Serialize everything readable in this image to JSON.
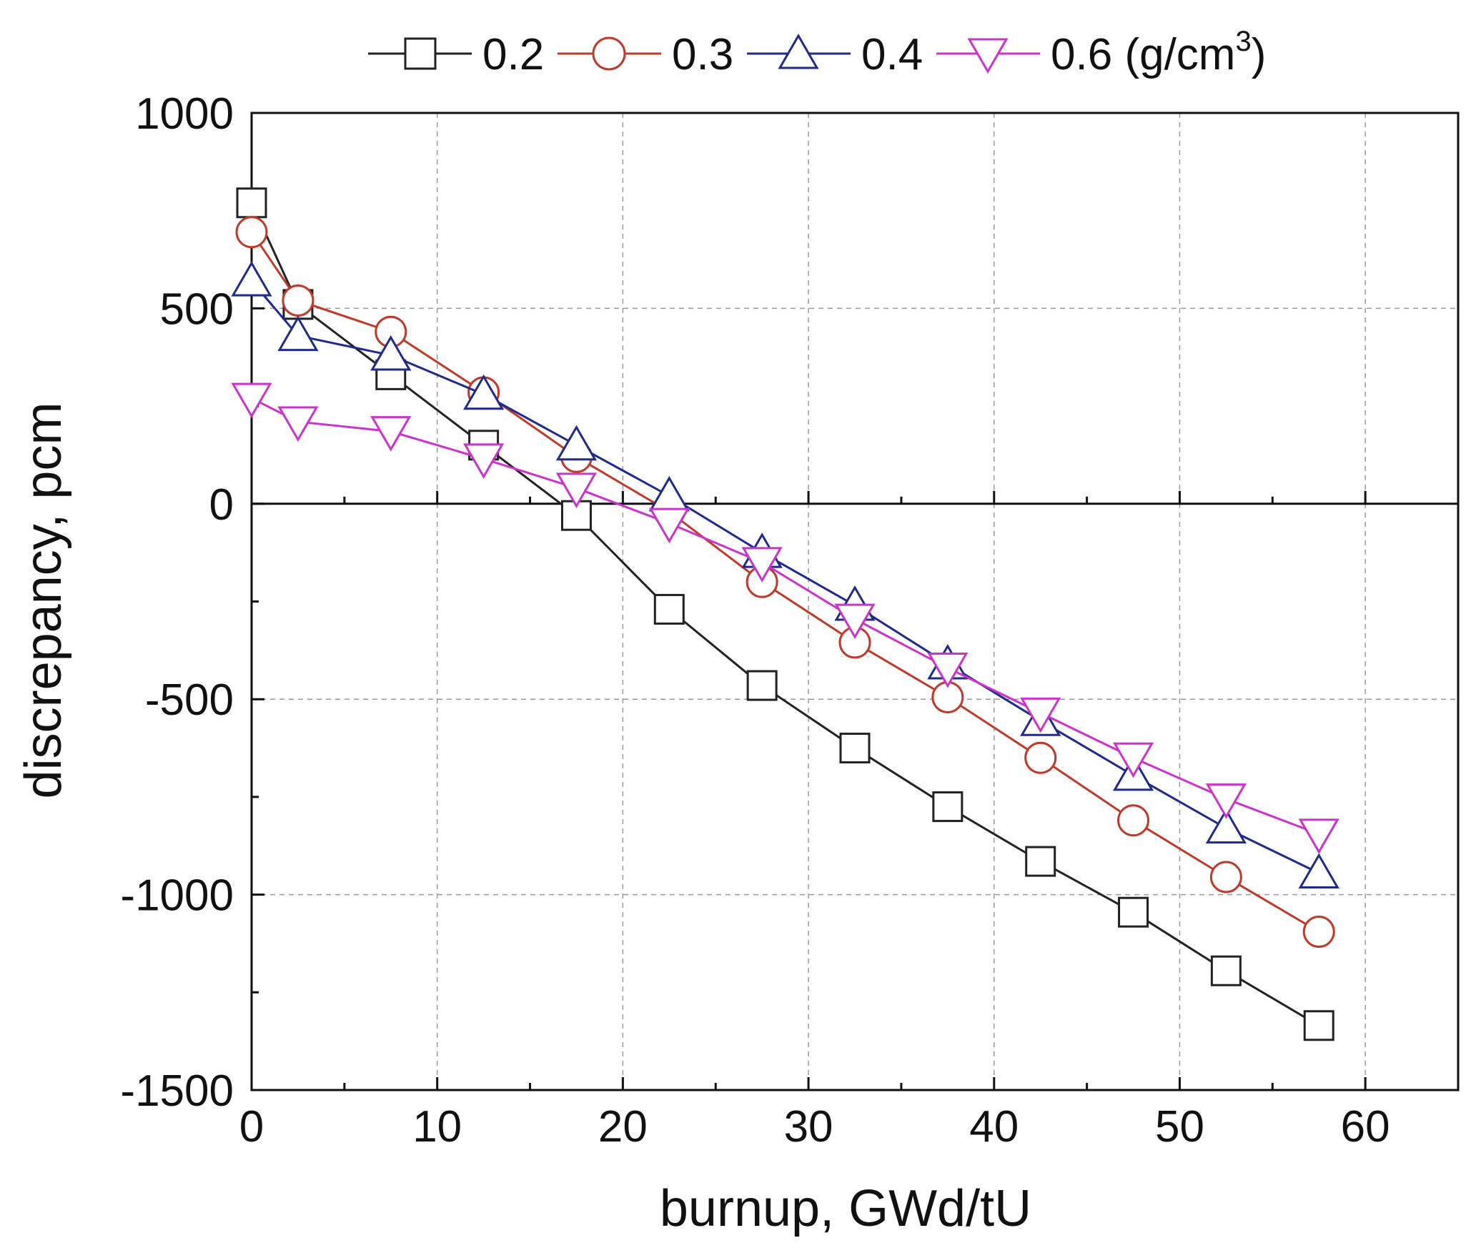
{
  "chart_data": {
    "type": "line",
    "title": "",
    "xlabel": "burnup, GWd/tU",
    "ylabel": "discrepancy, pcm",
    "xlim": [
      0,
      65
    ],
    "ylim": [
      -1500,
      1000
    ],
    "xticks": [
      0,
      10,
      20,
      30,
      40,
      50,
      60
    ],
    "yticks": [
      1000,
      500,
      0,
      -500,
      -1000,
      -1500
    ],
    "xtick_labels": [
      "0",
      "10",
      "20",
      "30",
      "40",
      "50",
      "60"
    ],
    "ytick_labels": [
      "1000",
      "500",
      "0",
      "-500",
      "-1000",
      "-1500"
    ],
    "grid": true,
    "legend_position": "top",
    "legend_unit": "(g/cm",
    "legend_unit_sup": "3",
    "legend_unit_close": ")",
    "x": [
      0,
      2.5,
      7.5,
      12.5,
      17.5,
      22.5,
      27.5,
      32.5,
      37.5,
      42.5,
      47.5,
      52.5,
      57.5
    ],
    "series": [
      {
        "name": "0.2",
        "color": "#222222",
        "marker": "square",
        "values": [
          770,
          510,
          330,
          150,
          -30,
          -270,
          -465,
          -625,
          -775,
          -915,
          -1045,
          -1195,
          -1335
        ]
      },
      {
        "name": "0.3",
        "color": "#c0392b",
        "marker": "circle",
        "values": [
          695,
          520,
          440,
          285,
          120,
          -20,
          -200,
          -355,
          -495,
          -650,
          -810,
          -955,
          -1095
        ]
      },
      {
        "name": "0.4",
        "color": "#1f2a8a",
        "marker": "triangle-up",
        "values": [
          570,
          430,
          380,
          280,
          150,
          20,
          -125,
          -260,
          -410,
          -555,
          -695,
          -830,
          -945
        ]
      },
      {
        "name": "0.6",
        "color": "#cc33cc",
        "marker": "triangle-down",
        "values": [
          270,
          210,
          185,
          115,
          40,
          -50,
          -150,
          -295,
          -420,
          -535,
          -650,
          -755,
          -845
        ]
      }
    ]
  }
}
